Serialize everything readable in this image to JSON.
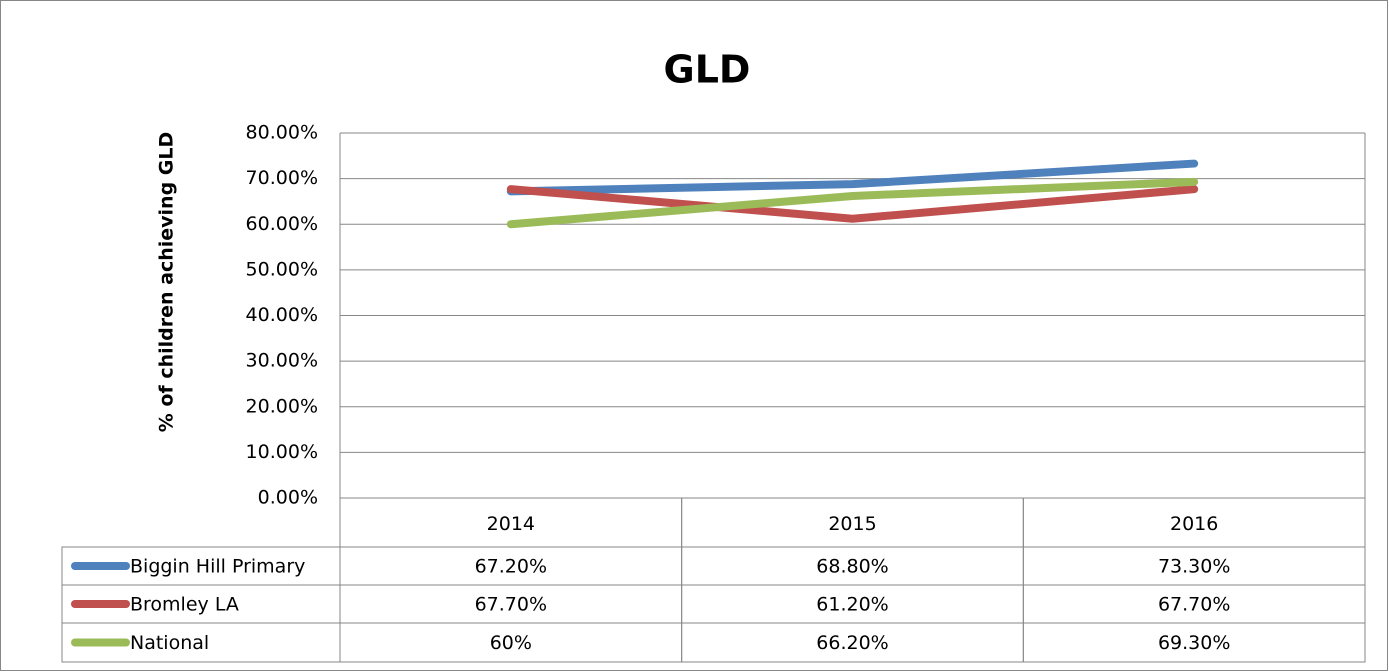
{
  "chart_data": {
    "type": "line",
    "title": "GLD",
    "y_label": "% of children achieving GLD",
    "categories": [
      "2014",
      "2015",
      "2016"
    ],
    "series": [
      {
        "name": "Biggin Hill Primary",
        "color": "#4f81bd",
        "values": [
          67.2,
          68.8,
          73.3
        ],
        "value_labels": [
          "67.20%",
          "68.80%",
          "73.30%"
        ]
      },
      {
        "name": "Bromley LA",
        "color": "#c0504d",
        "values": [
          67.7,
          61.2,
          67.7
        ],
        "value_labels": [
          "67.70%",
          "61.20%",
          "67.70%"
        ]
      },
      {
        "name": "National",
        "color": "#9bbb59",
        "values": [
          60,
          66.2,
          69.3
        ],
        "value_labels": [
          "60%",
          "66.20%",
          "69.30%"
        ]
      }
    ],
    "ylim": [
      0,
      80
    ],
    "yticks": [
      {
        "value": 0,
        "label": "0.00%"
      },
      {
        "value": 10,
        "label": "10.00%"
      },
      {
        "value": 20,
        "label": "20.00%"
      },
      {
        "value": 30,
        "label": "30.00%"
      },
      {
        "value": 40,
        "label": "40.00%"
      },
      {
        "value": 50,
        "label": "50.00%"
      },
      {
        "value": 60,
        "label": "60.00%"
      },
      {
        "value": 70,
        "label": "70.00%"
      },
      {
        "value": 80,
        "label": "80.00%"
      }
    ],
    "grid": true
  }
}
